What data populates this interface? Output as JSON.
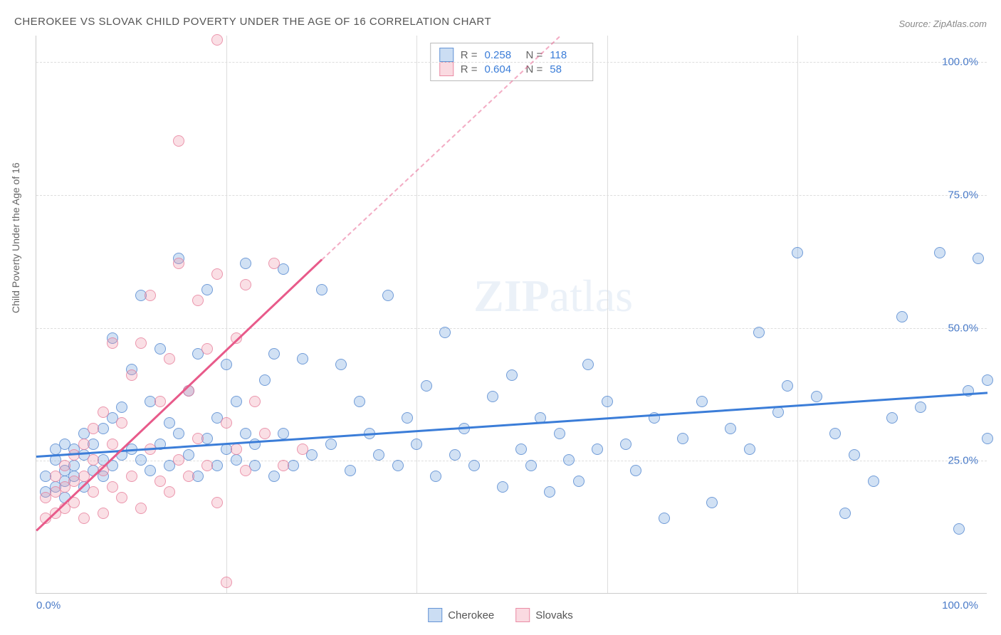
{
  "title": "CHEROKEE VS SLOVAK CHILD POVERTY UNDER THE AGE OF 16 CORRELATION CHART",
  "source": "Source: ZipAtlas.com",
  "ylabel": "Child Poverty Under the Age of 16",
  "watermark_zip": "ZIP",
  "watermark_atlas": "atlas",
  "chart": {
    "type": "scatter",
    "xlim": [
      0,
      100
    ],
    "ylim": [
      0,
      105
    ],
    "yticks": [
      25,
      50,
      75,
      100
    ],
    "ytick_labels": [
      "25.0%",
      "50.0%",
      "75.0%",
      "100.0%"
    ],
    "xticks": [
      0,
      20,
      40,
      60,
      80,
      100
    ],
    "xtick_labels_ends": [
      "0.0%",
      "100.0%"
    ],
    "grid_color": "#dddddd",
    "background_color": "#ffffff",
    "series": [
      {
        "name": "Cherokee",
        "color_fill": "rgba(124,169,224,0.35)",
        "color_stroke": "rgba(90,140,210,0.8)",
        "R": "0.258",
        "N": "118",
        "trend": {
          "x1": 0,
          "y1": 26,
          "x2": 100,
          "y2": 38,
          "color": "#3b7dd8"
        },
        "points": [
          [
            1,
            19
          ],
          [
            1,
            22
          ],
          [
            2,
            20
          ],
          [
            2,
            25
          ],
          [
            2,
            27
          ],
          [
            3,
            18
          ],
          [
            3,
            21
          ],
          [
            3,
            23
          ],
          [
            3,
            28
          ],
          [
            4,
            22
          ],
          [
            4,
            24
          ],
          [
            4,
            27
          ],
          [
            5,
            20
          ],
          [
            5,
            26
          ],
          [
            5,
            30
          ],
          [
            6,
            23
          ],
          [
            6,
            28
          ],
          [
            7,
            22
          ],
          [
            7,
            25
          ],
          [
            7,
            31
          ],
          [
            8,
            24
          ],
          [
            8,
            33
          ],
          [
            8,
            48
          ],
          [
            9,
            26
          ],
          [
            9,
            35
          ],
          [
            10,
            27
          ],
          [
            10,
            42
          ],
          [
            11,
            25
          ],
          [
            11,
            56
          ],
          [
            12,
            23
          ],
          [
            12,
            36
          ],
          [
            13,
            28
          ],
          [
            13,
            46
          ],
          [
            14,
            24
          ],
          [
            14,
            32
          ],
          [
            15,
            30
          ],
          [
            15,
            63
          ],
          [
            16,
            26
          ],
          [
            16,
            38
          ],
          [
            17,
            22
          ],
          [
            17,
            45
          ],
          [
            18,
            29
          ],
          [
            18,
            57
          ],
          [
            19,
            24
          ],
          [
            19,
            33
          ],
          [
            20,
            27
          ],
          [
            20,
            43
          ],
          [
            21,
            25
          ],
          [
            21,
            36
          ],
          [
            22,
            30
          ],
          [
            22,
            62
          ],
          [
            23,
            24
          ],
          [
            23,
            28
          ],
          [
            24,
            40
          ],
          [
            25,
            22
          ],
          [
            25,
            45
          ],
          [
            26,
            30
          ],
          [
            26,
            61
          ],
          [
            27,
            24
          ],
          [
            28,
            44
          ],
          [
            29,
            26
          ],
          [
            30,
            57
          ],
          [
            31,
            28
          ],
          [
            32,
            43
          ],
          [
            33,
            23
          ],
          [
            34,
            36
          ],
          [
            35,
            30
          ],
          [
            36,
            26
          ],
          [
            37,
            56
          ],
          [
            38,
            24
          ],
          [
            39,
            33
          ],
          [
            40,
            28
          ],
          [
            41,
            39
          ],
          [
            42,
            22
          ],
          [
            43,
            49
          ],
          [
            44,
            26
          ],
          [
            45,
            31
          ],
          [
            46,
            24
          ],
          [
            48,
            37
          ],
          [
            49,
            20
          ],
          [
            50,
            41
          ],
          [
            51,
            27
          ],
          [
            52,
            24
          ],
          [
            53,
            33
          ],
          [
            54,
            19
          ],
          [
            55,
            30
          ],
          [
            56,
            25
          ],
          [
            57,
            21
          ],
          [
            58,
            43
          ],
          [
            59,
            27
          ],
          [
            60,
            36
          ],
          [
            62,
            28
          ],
          [
            63,
            23
          ],
          [
            65,
            33
          ],
          [
            66,
            14
          ],
          [
            68,
            29
          ],
          [
            70,
            36
          ],
          [
            71,
            17
          ],
          [
            73,
            31
          ],
          [
            75,
            27
          ],
          [
            76,
            49
          ],
          [
            78,
            34
          ],
          [
            79,
            39
          ],
          [
            80,
            64
          ],
          [
            82,
            37
          ],
          [
            84,
            30
          ],
          [
            85,
            15
          ],
          [
            86,
            26
          ],
          [
            88,
            21
          ],
          [
            90,
            33
          ],
          [
            91,
            52
          ],
          [
            93,
            35
          ],
          [
            95,
            64
          ],
          [
            97,
            12
          ],
          [
            98,
            38
          ],
          [
            99,
            63
          ],
          [
            100,
            29
          ],
          [
            100,
            40
          ]
        ]
      },
      {
        "name": "Slovaks",
        "color_fill": "rgba(240,150,170,0.3)",
        "color_stroke": "rgba(230,120,150,0.7)",
        "R": "0.604",
        "N": "58",
        "trend_solid": {
          "x1": 0,
          "y1": 12,
          "x2": 30,
          "y2": 63,
          "color": "#e85a8a"
        },
        "trend_dash": {
          "x1": 30,
          "y1": 63,
          "x2": 55,
          "y2": 105
        },
        "points": [
          [
            1,
            14
          ],
          [
            1,
            18
          ],
          [
            2,
            15
          ],
          [
            2,
            19
          ],
          [
            2,
            22
          ],
          [
            3,
            16
          ],
          [
            3,
            20
          ],
          [
            3,
            24
          ],
          [
            4,
            17
          ],
          [
            4,
            21
          ],
          [
            4,
            26
          ],
          [
            5,
            14
          ],
          [
            5,
            22
          ],
          [
            5,
            28
          ],
          [
            6,
            19
          ],
          [
            6,
            25
          ],
          [
            6,
            31
          ],
          [
            7,
            15
          ],
          [
            7,
            23
          ],
          [
            7,
            34
          ],
          [
            8,
            20
          ],
          [
            8,
            28
          ],
          [
            8,
            47
          ],
          [
            9,
            18
          ],
          [
            9,
            32
          ],
          [
            10,
            22
          ],
          [
            10,
            41
          ],
          [
            11,
            16
          ],
          [
            11,
            47
          ],
          [
            12,
            27
          ],
          [
            12,
            56
          ],
          [
            13,
            21
          ],
          [
            13,
            36
          ],
          [
            14,
            19
          ],
          [
            14,
            44
          ],
          [
            15,
            25
          ],
          [
            15,
            62
          ],
          [
            15,
            85
          ],
          [
            16,
            22
          ],
          [
            16,
            38
          ],
          [
            17,
            29
          ],
          [
            17,
            55
          ],
          [
            18,
            24
          ],
          [
            18,
            46
          ],
          [
            19,
            17
          ],
          [
            19,
            60
          ],
          [
            19,
            104
          ],
          [
            20,
            32
          ],
          [
            20,
            2
          ],
          [
            21,
            27
          ],
          [
            21,
            48
          ],
          [
            22,
            23
          ],
          [
            22,
            58
          ],
          [
            23,
            36
          ],
          [
            24,
            30
          ],
          [
            25,
            62
          ],
          [
            26,
            24
          ],
          [
            28,
            27
          ]
        ]
      }
    ]
  },
  "legend_top_rows": [
    {
      "swatch": "blue",
      "R_lbl": "R =",
      "R_val": "0.258",
      "N_lbl": "N =",
      "N_val": "118"
    },
    {
      "swatch": "pink",
      "R_lbl": "R =",
      "R_val": "0.604",
      "N_lbl": "N =",
      "N_val": "58"
    }
  ],
  "legend_bottom": [
    {
      "swatch": "blue",
      "label": "Cherokee"
    },
    {
      "swatch": "pink",
      "label": "Slovaks"
    }
  ]
}
